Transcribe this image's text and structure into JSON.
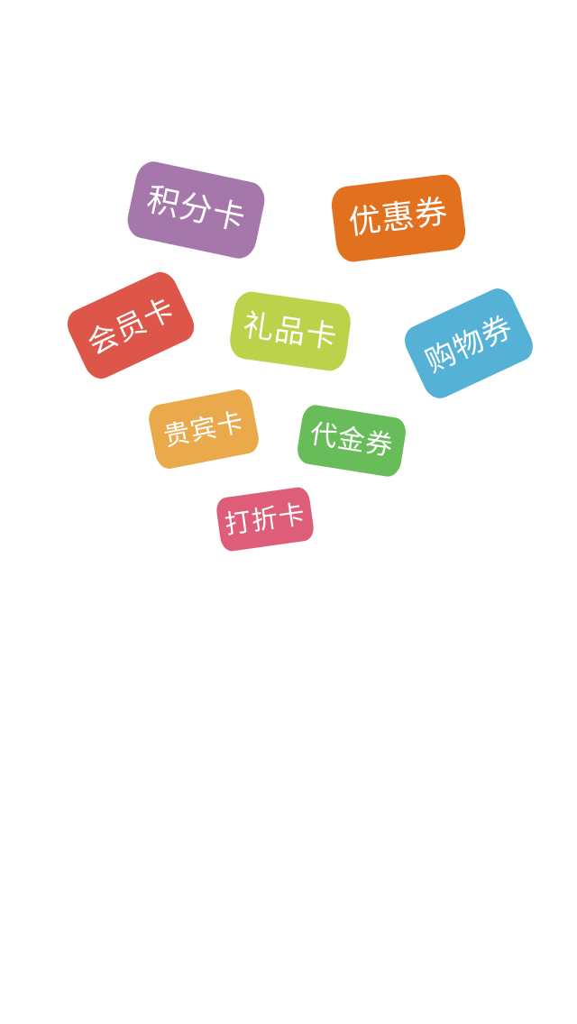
{
  "tags": [
    {
      "label": "积分卡",
      "color": "#a577ab"
    },
    {
      "label": "优惠券",
      "color": "#e2711f"
    },
    {
      "label": "会员卡",
      "color": "#de564a"
    },
    {
      "label": "礼品卡",
      "color": "#bcd24a"
    },
    {
      "label": "购物券",
      "color": "#55b1d6"
    },
    {
      "label": "贵宾卡",
      "color": "#eaaa4b"
    },
    {
      "label": "代金券",
      "color": "#68bd5a"
    },
    {
      "label": "打折卡",
      "color": "#de5d79"
    }
  ]
}
